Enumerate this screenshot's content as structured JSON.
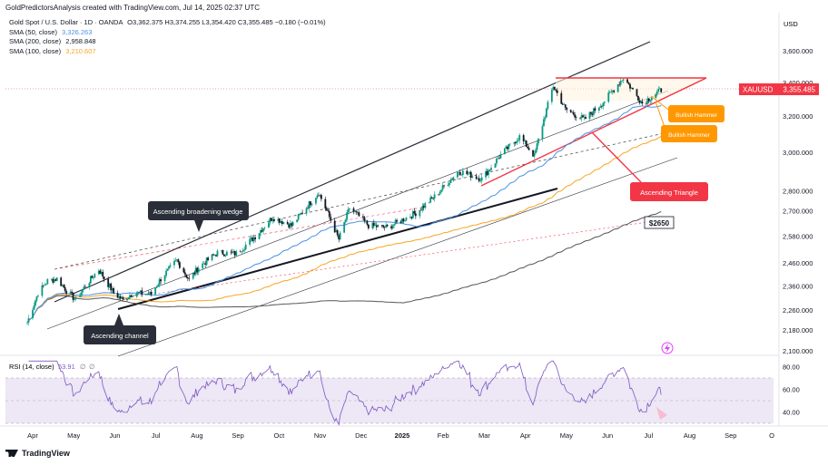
{
  "header": {
    "created_by": "GoldPredictorsAnalysis created with TradingView.com, Jul 14, 2025 02:37 UTC"
  },
  "legend": {
    "symbol_line": "Gold Spot / U.S. Dollar · 1D · OANDA",
    "ohlc": "O3,362.375  H3,374.255  L3,354.420  C3,355.485  −0.180 (−0.01%)",
    "sma_50_label": "SMA (50, close)",
    "sma_50_value": "3,326.263",
    "sma_200_label": "SMA (200, close)",
    "sma_200_value": "2,958.848",
    "sma_100_label": "SMA (100, close)",
    "sma_100_value": "3,210.607"
  },
  "axis": {
    "currency": "USD",
    "price_ticks": [
      "3,600.000",
      "3,400.000",
      "3,200.000",
      "3,000.000",
      "2,800.000",
      "2,700.000",
      "2,580.000",
      "2,460.000",
      "2,360.000",
      "2,260.000",
      "2,180.000",
      "2,100.000"
    ],
    "rsi_ticks": [
      "80.00",
      "60.00",
      "40.00"
    ],
    "time_ticks": [
      "Apr",
      "May",
      "Jun",
      "Jul",
      "Aug",
      "Sep",
      "Oct",
      "Nov",
      "Dec",
      "2025",
      "Feb",
      "Mar",
      "Apr",
      "May",
      "Jun",
      "Jul",
      "Aug",
      "Sep",
      "O"
    ]
  },
  "price_badge": {
    "symbol": "XAUUSD",
    "value": "3,355.485"
  },
  "rsi_header": {
    "label": "RSI (14, close)",
    "value": "53.91",
    "ph1": "∅",
    "ph2": "∅"
  },
  "annotations": {
    "wedge": "Ascending broadening wedge",
    "channel": "Ascending channel",
    "triangle": "Ascending Triangle",
    "hammer1": "Bullish Hammer",
    "hammer2": "Bullish Hammer",
    "level": "$2650"
  },
  "colors": {
    "up": "#089981",
    "down": "#131722",
    "sma50": "#4a90e2",
    "sma100": "#f5a623",
    "sma200": "#555555",
    "triangle": "#f23645",
    "badge": "#f23645",
    "rsi": "#7e57c2",
    "hammer": "#ff9800",
    "callout": "#2a2e39"
  },
  "footer": {
    "brand": "TradingView"
  },
  "chart_data": {
    "type": "candlestick",
    "title": "Gold Spot / U.S. Dollar · 1D · OANDA",
    "y_scale": "log",
    "ylim": [
      2080,
      3700
    ],
    "x_range_months": [
      "2024-04",
      "2025-10"
    ],
    "grid": false,
    "closes_approx": [
      [
        "2024-03-28",
        2210
      ],
      [
        "2024-04-05",
        2330
      ],
      [
        "2024-04-12",
        2380
      ],
      [
        "2024-04-19",
        2390
      ],
      [
        "2024-04-26",
        2340
      ],
      [
        "2024-05-03",
        2300
      ],
      [
        "2024-05-10",
        2360
      ],
      [
        "2024-05-20",
        2430
      ],
      [
        "2024-05-31",
        2330
      ],
      [
        "2024-06-07",
        2300
      ],
      [
        "2024-06-14",
        2330
      ],
      [
        "2024-06-28",
        2325
      ],
      [
        "2024-07-05",
        2390
      ],
      [
        "2024-07-17",
        2470
      ],
      [
        "2024-07-26",
        2385
      ],
      [
        "2024-08-02",
        2440
      ],
      [
        "2024-08-16",
        2505
      ],
      [
        "2024-08-30",
        2500
      ],
      [
        "2024-09-13",
        2580
      ],
      [
        "2024-09-26",
        2670
      ],
      [
        "2024-10-10",
        2630
      ],
      [
        "2024-10-30",
        2790
      ],
      [
        "2024-11-14",
        2565
      ],
      [
        "2024-11-22",
        2715
      ],
      [
        "2024-12-06",
        2630
      ],
      [
        "2024-12-20",
        2620
      ],
      [
        "2025-01-10",
        2690
      ],
      [
        "2025-01-24",
        2770
      ],
      [
        "2025-02-11",
        2900
      ],
      [
        "2025-02-28",
        2860
      ],
      [
        "2025-03-14",
        2985
      ],
      [
        "2025-03-28",
        3085
      ],
      [
        "2025-04-08",
        2980
      ],
      [
        "2025-04-22",
        3380
      ],
      [
        "2025-05-01",
        3240
      ],
      [
        "2025-05-15",
        3180
      ],
      [
        "2025-05-30",
        3290
      ],
      [
        "2025-06-13",
        3430
      ],
      [
        "2025-06-27",
        3275
      ],
      [
        "2025-07-11",
        3355
      ]
    ],
    "sma": [
      {
        "name": "SMA (50, close)",
        "last": 3326.263
      },
      {
        "name": "SMA (200, close)",
        "last": 2958.848
      },
      {
        "name": "SMA (100, close)",
        "last": 3210.607
      }
    ],
    "last_price": 3355.485,
    "levels": [
      2650
    ],
    "rsi": {
      "label": "RSI (14, close)",
      "last": 53.91,
      "bands": [
        30,
        70
      ],
      "mid": 50
    }
  }
}
